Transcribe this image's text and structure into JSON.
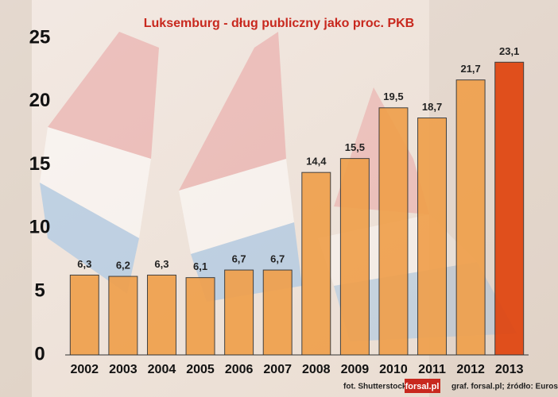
{
  "chart_data": {
    "type": "bar",
    "title": "Luksemburg - dług publiczny jako proc. PKB",
    "categories": [
      "2002",
      "2003",
      "2004",
      "2005",
      "2006",
      "2007",
      "2008",
      "2009",
      "2010",
      "2011",
      "2012",
      "2013"
    ],
    "values": [
      6.3,
      6.2,
      6.3,
      6.1,
      6.7,
      6.7,
      14.4,
      15.5,
      19.5,
      18.7,
      21.7,
      23.1
    ],
    "value_labels": [
      "6,3",
      "6,2",
      "6,3",
      "6,1",
      "6,7",
      "6,7",
      "14,4",
      "15,5",
      "19,5",
      "18,7",
      "21,7",
      "23,1"
    ],
    "colors": [
      "#f0a04c",
      "#f0a04c",
      "#f0a04c",
      "#f0a04c",
      "#f0a04c",
      "#f0a04c",
      "#f0a04c",
      "#f0a04c",
      "#f0a04c",
      "#f0a04c",
      "#f0a04c",
      "#e0440e"
    ],
    "ylim": [
      0,
      25
    ],
    "yticks": [
      0,
      5,
      10,
      15,
      20,
      25
    ],
    "grid": false,
    "photo_credit": "fot. Shutterstock",
    "logo": "forsal.pl",
    "source": "graf. forsal.pl; źródło: Eurostat"
  }
}
